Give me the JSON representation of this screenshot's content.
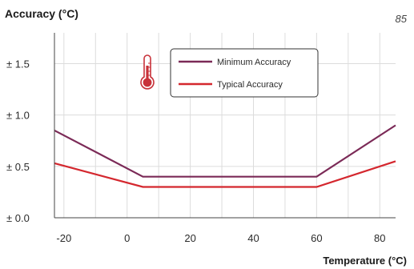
{
  "chart_data": {
    "type": "line",
    "title": "",
    "ylabel": "Accuracy (°C)",
    "xlabel": "Temperature (°C)",
    "corner_note": "85",
    "xlim": [
      -23,
      85
    ],
    "ylim": [
      0,
      1.8
    ],
    "x_ticks": [
      -20,
      0,
      20,
      40,
      60,
      80
    ],
    "x_tick_labels": [
      "-20",
      "0",
      "20",
      "40",
      "60",
      "80"
    ],
    "y_ticks": [
      0,
      0.5,
      1.0,
      1.5
    ],
    "y_tick_labels": [
      "± 0.0",
      "± 0.5",
      "± 1.0",
      "± 1.5"
    ],
    "grid": true,
    "legend_position": "top-center",
    "series": [
      {
        "name": "Minimum Accuracy",
        "color": "#7b2a57",
        "x": [
          -23,
          5,
          60,
          85
        ],
        "y": [
          0.85,
          0.4,
          0.4,
          0.9
        ]
      },
      {
        "name": "Typical Accuracy",
        "color": "#d4272e",
        "x": [
          -23,
          5,
          60,
          85
        ],
        "y": [
          0.53,
          0.3,
          0.3,
          0.55
        ]
      }
    ],
    "icon": "thermometer-icon",
    "icon_color": "#c8323a"
  }
}
